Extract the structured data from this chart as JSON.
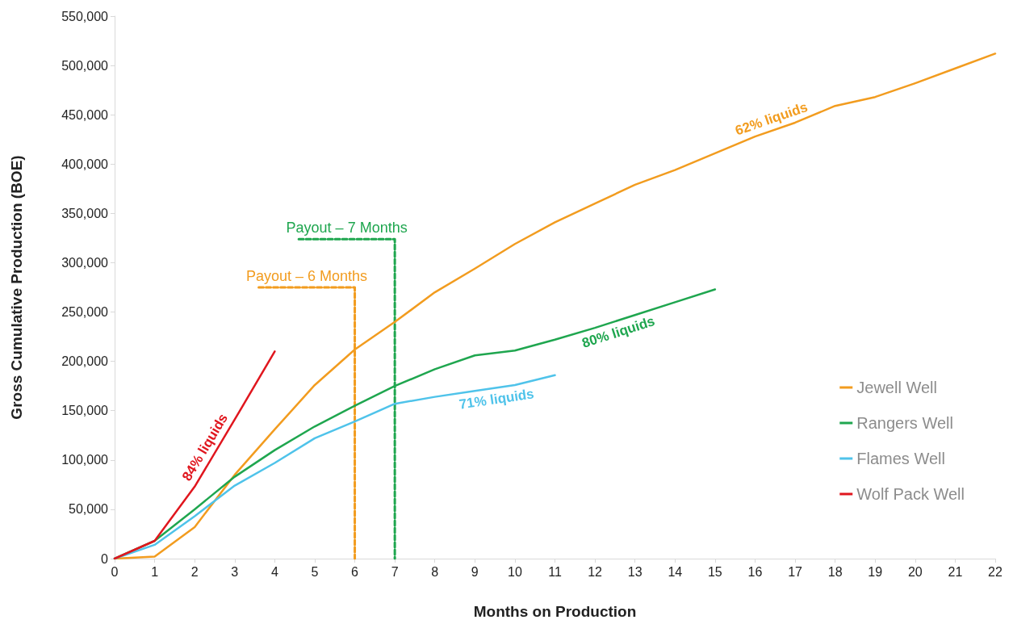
{
  "chart_data": {
    "type": "line",
    "xlabel": "Months on Production",
    "ylabel": "Gross Cumulative Production (BOE)",
    "x": [
      0,
      1,
      2,
      3,
      4,
      5,
      6,
      7,
      8,
      9,
      10,
      11,
      12,
      13,
      14,
      15,
      16,
      17,
      18,
      19,
      20,
      21,
      22
    ],
    "series": [
      {
        "name": "Jewell Well",
        "color": "#f29c1f",
        "values": [
          0,
          2000,
          32000,
          85000,
          131000,
          176000,
          212000,
          240000,
          270000,
          294000,
          319000,
          341000,
          360000,
          379000,
          394000,
          411000,
          428000,
          442000,
          459000,
          468000,
          482000,
          497000,
          512000
        ]
      },
      {
        "name": "Rangers Well",
        "color": "#1fa64f",
        "values": [
          0,
          18000,
          50000,
          83000,
          110000,
          134000,
          155000,
          175000,
          192000,
          206000,
          211000,
          222000,
          234000,
          247000,
          260000,
          273000,
          null,
          null,
          null,
          null,
          null,
          null,
          null
        ]
      },
      {
        "name": "Flames Well",
        "color": "#4fc3ea",
        "values": [
          0,
          14000,
          43000,
          74000,
          97000,
          122000,
          139000,
          157000,
          164000,
          170000,
          176000,
          186000,
          null,
          null,
          null,
          null,
          null,
          null,
          null,
          null,
          null,
          null,
          null
        ]
      },
      {
        "name": "Wolf Pack Well",
        "color": "#e0161e",
        "values": [
          0,
          18000,
          73000,
          141000,
          210000,
          null,
          null,
          null,
          null,
          null,
          null,
          null,
          null,
          null,
          null,
          null,
          null,
          null,
          null,
          null,
          null,
          null,
          null
        ]
      },
      {
        "color": "#f29c1f",
        "line_style": "dashed",
        "x": [
          3.6,
          6,
          6
        ],
        "values": [
          275000,
          275000,
          0
        ]
      },
      {
        "color": "#1fa64f",
        "line_style": "dashed",
        "x": [
          4.6,
          7,
          7
        ],
        "values": [
          324000,
          324000,
          0
        ]
      }
    ],
    "annotations": [
      {
        "text": "Payout – 6 Months",
        "x": 3.6,
        "y": 275000
      },
      {
        "text": "Payout – 7 Months",
        "x": 4.6,
        "y": 324000
      },
      {
        "text": "62% liquids",
        "x": 16,
        "y": 428000
      },
      {
        "text": "80% liquids",
        "x": 12,
        "y": 234000
      },
      {
        "text": "71% liquids",
        "x": 9,
        "y": 170000
      },
      {
        "text": "84% liquids",
        "x": 2,
        "y": 73000
      }
    ],
    "xlim": [
      0,
      22
    ],
    "xticks": [
      0,
      1,
      2,
      3,
      4,
      5,
      6,
      7,
      8,
      9,
      10,
      11,
      12,
      13,
      14,
      15,
      16,
      17,
      18,
      19,
      20,
      21,
      22
    ],
    "ylim": [
      0,
      550000
    ],
    "yticks": [
      0,
      {
        "value": 50000,
        "label": "50,000"
      },
      {
        "value": 100000,
        "label": "100,000"
      },
      {
        "value": 150000,
        "label": "150,000"
      },
      {
        "value": 200000,
        "label": "200,000"
      },
      {
        "value": 250000,
        "label": "250,000"
      },
      {
        "value": 300000,
        "label": "300,000"
      },
      {
        "value": 350000,
        "label": "350,000"
      },
      {
        "value": 400000,
        "label": "400,000"
      },
      {
        "value": 450000,
        "label": "450,000"
      },
      {
        "value": 500000,
        "label": "500,000"
      },
      {
        "value": 550000,
        "label": "550,000"
      }
    ],
    "grid": false,
    "legend": "right",
    "marker": "none",
    "line_style": "solid"
  }
}
